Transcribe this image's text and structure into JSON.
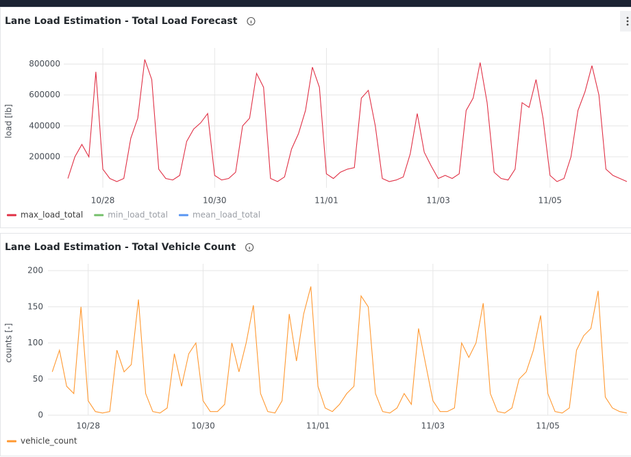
{
  "chart_data": [
    {
      "type": "line",
      "title": "Lane Load Estimation - Total Load Forecast",
      "ylabel": "load [lb]",
      "x": [
        27.375,
        27.5,
        27.625,
        27.75,
        27.875,
        28,
        28.125,
        28.25,
        28.375,
        28.5,
        28.625,
        28.75,
        28.875,
        29,
        29.125,
        29.25,
        29.375,
        29.5,
        29.625,
        29.75,
        29.875,
        30,
        30.125,
        30.25,
        30.375,
        30.5,
        30.625,
        30.75,
        30.875,
        31,
        31.125,
        31.25,
        31.375,
        31.5,
        31.625,
        31.75,
        31.875,
        32,
        32.125,
        32.25,
        32.375,
        32.5,
        32.625,
        32.75,
        32.875,
        33,
        33.125,
        33.25,
        33.375,
        33.5,
        33.625,
        33.75,
        33.875,
        34,
        34.125,
        34.25,
        34.375,
        34.5,
        34.625,
        34.75,
        34.875,
        35,
        35.125,
        35.25,
        35.375,
        35.5,
        35.625,
        35.75,
        35.875,
        36,
        36.125,
        36.25,
        36.375,
        36.5,
        36.625,
        36.75,
        36.875,
        37,
        37.125,
        37.25,
        37.375
      ],
      "series": [
        {
          "name": "max_load_total",
          "color": "#e02f44",
          "values": [
            60000,
            200000,
            280000,
            200000,
            750000,
            120000,
            60000,
            40000,
            60000,
            320000,
            450000,
            830000,
            700000,
            120000,
            60000,
            50000,
            80000,
            300000,
            380000,
            420000,
            480000,
            80000,
            50000,
            60000,
            100000,
            400000,
            450000,
            740000,
            650000,
            60000,
            40000,
            70000,
            250000,
            350000,
            500000,
            780000,
            650000,
            90000,
            60000,
            100000,
            120000,
            130000,
            580000,
            630000,
            400000,
            60000,
            40000,
            50000,
            70000,
            220000,
            480000,
            230000,
            140000,
            60000,
            80000,
            60000,
            90000,
            500000,
            580000,
            810000,
            550000,
            100000,
            60000,
            50000,
            120000,
            550000,
            520000,
            700000,
            450000,
            80000,
            40000,
            60000,
            200000,
            500000,
            620000,
            790000,
            600000,
            120000,
            80000,
            60000,
            40000
          ]
        },
        {
          "name": "min_load_total",
          "color": "#73bf69",
          "hidden": true
        },
        {
          "name": "mean_load_total",
          "color": "#5794f2",
          "hidden": true
        }
      ],
      "xlim": [
        27.3,
        37.4
      ],
      "xticks": [
        {
          "value": 28,
          "label": "10/28"
        },
        {
          "value": 30,
          "label": "10/30"
        },
        {
          "value": 32,
          "label": "11/01"
        },
        {
          "value": 34,
          "label": "11/03"
        },
        {
          "value": 36,
          "label": "11/05"
        }
      ],
      "ylim": [
        0,
        860000
      ],
      "yticks": [
        200000,
        400000,
        600000,
        800000
      ],
      "grid": true
    },
    {
      "type": "line",
      "title": "Lane Load Estimation - Total Vehicle Count",
      "ylabel": "counts [-]",
      "x": [
        27.375,
        27.5,
        27.625,
        27.75,
        27.875,
        28,
        28.125,
        28.25,
        28.375,
        28.5,
        28.625,
        28.75,
        28.875,
        29,
        29.125,
        29.25,
        29.375,
        29.5,
        29.625,
        29.75,
        29.875,
        30,
        30.125,
        30.25,
        30.375,
        30.5,
        30.625,
        30.75,
        30.875,
        31,
        31.125,
        31.25,
        31.375,
        31.5,
        31.625,
        31.75,
        31.875,
        32,
        32.125,
        32.25,
        32.375,
        32.5,
        32.625,
        32.75,
        32.875,
        33,
        33.125,
        33.25,
        33.375,
        33.5,
        33.625,
        33.75,
        33.875,
        34,
        34.125,
        34.25,
        34.375,
        34.5,
        34.625,
        34.75,
        34.875,
        35,
        35.125,
        35.25,
        35.375,
        35.5,
        35.625,
        35.75,
        35.875,
        36,
        36.125,
        36.25,
        36.375,
        36.5,
        36.625,
        36.75,
        36.875,
        37,
        37.125,
        37.25,
        37.375
      ],
      "series": [
        {
          "name": "vehicle_count",
          "color": "#ff9830",
          "values": [
            60,
            90,
            40,
            30,
            150,
            20,
            5,
            3,
            5,
            90,
            60,
            70,
            160,
            30,
            5,
            3,
            10,
            85,
            40,
            85,
            100,
            20,
            5,
            5,
            15,
            100,
            60,
            100,
            152,
            30,
            5,
            3,
            20,
            140,
            75,
            140,
            178,
            40,
            10,
            5,
            15,
            30,
            40,
            165,
            150,
            30,
            5,
            3,
            10,
            30,
            15,
            120,
            70,
            20,
            5,
            5,
            10,
            100,
            80,
            100,
            155,
            30,
            5,
            3,
            10,
            50,
            60,
            90,
            138,
            30,
            5,
            3,
            10,
            90,
            110,
            120,
            172,
            25,
            10,
            5,
            3
          ]
        }
      ],
      "xlim": [
        27.3,
        37.4
      ],
      "xticks": [
        {
          "value": 28,
          "label": "10/28"
        },
        {
          "value": 30,
          "label": "10/30"
        },
        {
          "value": 32,
          "label": "11/01"
        },
        {
          "value": 34,
          "label": "11/03"
        },
        {
          "value": 36,
          "label": "11/05"
        }
      ],
      "ylim": [
        0,
        200
      ],
      "yticks": [
        0,
        50,
        100,
        150,
        200
      ],
      "grid": true
    }
  ]
}
